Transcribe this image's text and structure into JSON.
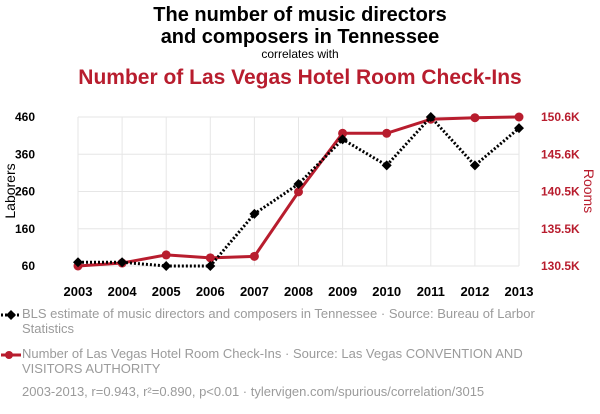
{
  "header": {
    "title_line1": "The number of music directors",
    "title_line2": "and composers in Tennessee",
    "correlates": "correlates with",
    "title2": "Number of Las Vegas Hotel Room Check-Ins"
  },
  "chart_data": {
    "type": "line",
    "x": [
      "2003",
      "2004",
      "2005",
      "2006",
      "2007",
      "2008",
      "2009",
      "2010",
      "2011",
      "2012",
      "2013"
    ],
    "series": [
      {
        "name": "BLS estimate of music directors and composers in Tennessee · Source: Bureau of Larbor Statistics",
        "axis": "left",
        "color": "#000000",
        "style": "dotted",
        "marker": "diamond",
        "values": [
          70,
          70,
          60,
          60,
          200,
          280,
          400,
          330,
          460,
          330,
          430
        ]
      },
      {
        "name": "Number of Las Vegas Hotel Room Check-Ins · Source: Las Vegas CONVENTION AND VISITORS AUTHORITY",
        "axis": "right",
        "color": "#b81d2e",
        "style": "solid",
        "marker": "circle",
        "values": [
          130500,
          130900,
          132000,
          131600,
          131800,
          140500,
          148400,
          148400,
          150300,
          150500,
          150600
        ]
      }
    ],
    "y_left": {
      "label": "Laborers",
      "ticks": [
        "460",
        "360",
        "260",
        "160",
        "60"
      ],
      "range": [
        60,
        460
      ]
    },
    "y_right": {
      "label": "Rooms",
      "ticks": [
        "150.6K",
        "145.6K",
        "140.5K",
        "135.5K",
        "130.5K"
      ],
      "range": [
        130500,
        150600
      ]
    },
    "grid": true
  },
  "legend": [
    {
      "text": "BLS estimate of music directors and composers in Tennessee · Source: Bureau of Larbor Statistics"
    },
    {
      "text": "Number of Las Vegas Hotel Room Check-Ins · Source: Las Vegas CONVENTION AND VISITORS AUTHORITY"
    }
  ],
  "footer": "2003-2013, r=0.943, r²=0.890, p<0.01 · tylervigen.com/spurious/correlation/3015"
}
